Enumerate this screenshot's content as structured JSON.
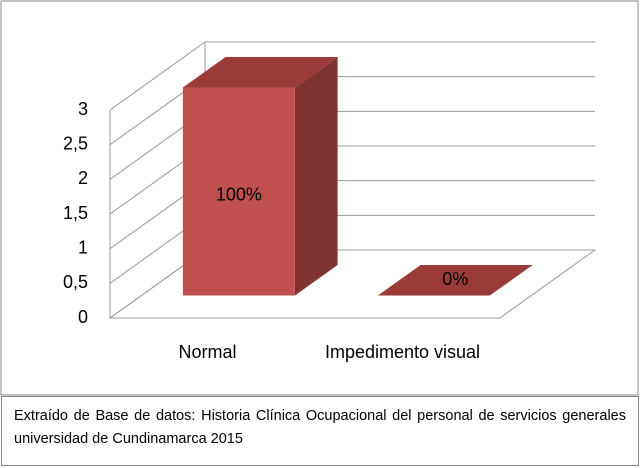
{
  "chart_data": {
    "type": "bar3d",
    "categories": [
      "Normal",
      "Impedimento visual"
    ],
    "values": [
      3,
      0
    ],
    "annotations": [
      "100%",
      "0%"
    ],
    "color": "#c0504d",
    "ylim": [
      0,
      3
    ],
    "yticks": [
      0,
      {
        "value": 0.5,
        "label": "0,5"
      },
      1,
      {
        "value": 1.5,
        "label": "1,5"
      },
      2,
      {
        "value": 2.5,
        "label": "2,5"
      },
      3
    ],
    "grid": true,
    "caption": "Extraído de Base de datos: Historia Clínica Ocupacional del personal de servicios generales universidad de Cundinamarca 2015"
  }
}
